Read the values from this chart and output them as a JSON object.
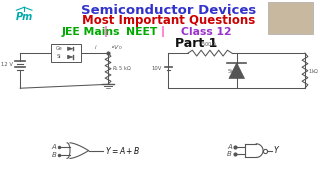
{
  "bg_color": "#ffffff",
  "title1": "Semiconductor Devices",
  "title1_color": "#3333cc",
  "title2": "Most Important Questions",
  "title2_color": "#cc0000",
  "title3_parts": [
    "JEE Mains ",
    "| ",
    "NEET ",
    "| ",
    "Class 12"
  ],
  "title3_colors": [
    "#00aa00",
    "#ff44bb",
    "#00aa00",
    "#ff44bb",
    "#9933cc"
  ],
  "part_text": "Part 1",
  "part_color": "#111111",
  "pm_color": "#00aaaa",
  "cc": "#555555"
}
